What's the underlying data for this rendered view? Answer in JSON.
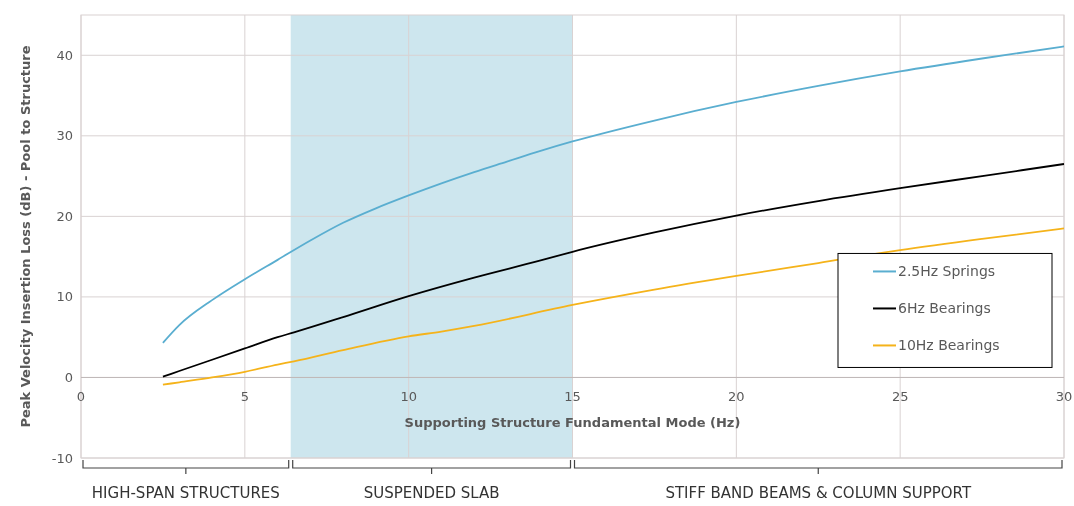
{
  "chart_data": {
    "type": "line",
    "xlabel": "Supporting Structure Fundamental Mode (Hz)",
    "ylabel": "Peak Velocity Insertion Loss (dB) - Pool to Structure",
    "xlim": [
      0,
      30
    ],
    "xticks": [
      0,
      5,
      10,
      15,
      20,
      25,
      30
    ],
    "ylim": [
      -10,
      45
    ],
    "yticks": [
      -10,
      0,
      10,
      20,
      30,
      40
    ],
    "grid": true,
    "legend": "bottom right",
    "line_style": "solid",
    "marker": "none",
    "bands": [
      {
        "axis": "x",
        "from": 6.4,
        "to": 15,
        "label": "SUSPENDED SLAB",
        "color": "#cde6ee"
      }
    ],
    "annotations": [
      "HIGH-SPAN STRUCTURES",
      "STIFF BAND BEAMS & COLUMN SUPPORT"
    ],
    "series": [
      {
        "name": "2.5Hz Springs",
        "color": "#5aaed0",
        "x": [
          2.5,
          3,
          4,
          5,
          6,
          7,
          8,
          9,
          10,
          11,
          12,
          13,
          14,
          15,
          17.5,
          20,
          22.5,
          25,
          27.5,
          30
        ],
        "values": [
          4.3,
          6.5,
          9.6,
          12.2,
          14.6,
          17.0,
          19.2,
          21.0,
          22.6,
          24.1,
          25.5,
          26.8,
          28.1,
          29.3,
          31.9,
          34.2,
          36.2,
          38.0,
          39.6,
          41.1
        ]
      },
      {
        "name": "6Hz Bearings",
        "color": "#000000",
        "x": [
          2.5,
          3,
          4,
          5,
          6,
          6.5,
          8,
          10,
          12,
          14,
          15,
          17.5,
          20,
          22.5,
          25,
          27.5,
          30
        ],
        "values": [
          0.1,
          0.8,
          2.2,
          3.6,
          5.0,
          5.6,
          7.5,
          10.1,
          12.4,
          14.5,
          15.6,
          18.0,
          20.1,
          21.9,
          23.5,
          25.0,
          26.5
        ]
      },
      {
        "name": "10Hz Bearings",
        "color": "#f5b31a",
        "x": [
          2.5,
          3,
          4,
          5,
          6,
          6.5,
          8,
          10,
          11,
          12,
          15,
          17.5,
          20,
          22.5,
          25,
          27.5,
          30
        ],
        "values": [
          -0.9,
          -0.6,
          0,
          0.7,
          1.6,
          2.0,
          3.4,
          5.1,
          5.7,
          6.4,
          9.0,
          10.9,
          12.6,
          14.2,
          15.8,
          17.2,
          18.5
        ]
      }
    ]
  }
}
